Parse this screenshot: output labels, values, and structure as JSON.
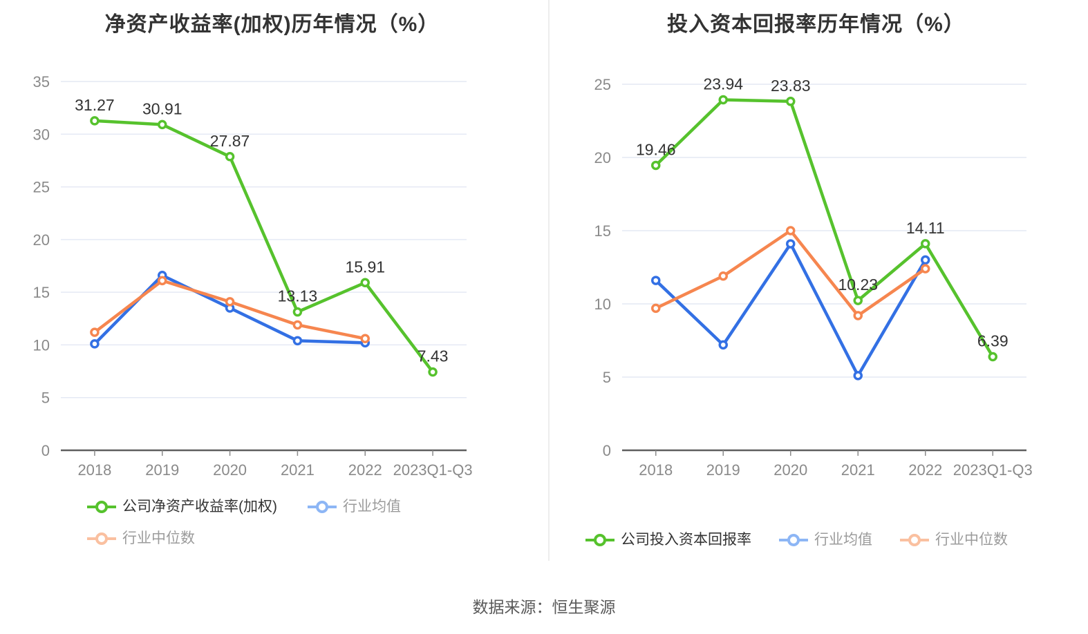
{
  "page": {
    "source_text": "数据来源：恒生聚源",
    "background_color": "#ffffff",
    "divider_color": "#ededed"
  },
  "colors": {
    "grid": "#e4e9f4",
    "axis_line": "#5e5e5e",
    "tick_text": "#8a8a8a",
    "value_label_text": "#333333",
    "legend_active_text": "#333333",
    "legend_muted_text": "#9b9b9b"
  },
  "chart_data": [
    {
      "type": "line",
      "title": "净资产收益率(加权)历年情况（%）",
      "categories": [
        "2018",
        "2019",
        "2020",
        "2021",
        "2022",
        "2023Q1-Q3"
      ],
      "ylim": [
        0,
        35
      ],
      "yticks": [
        0,
        5,
        10,
        15,
        20,
        25,
        30,
        35
      ],
      "grid": true,
      "legend_position": "bottom",
      "series": [
        {
          "name": "公司净资产收益率(加权)",
          "color": "#56c22d",
          "legend_marker_color": "#56c22d",
          "legend_text_color": "#333333",
          "show_labels": true,
          "values": [
            31.27,
            30.91,
            27.87,
            13.13,
            15.91,
            7.43
          ]
        },
        {
          "name": "行业均值",
          "color": "#3370e4",
          "legend_marker_color": "#8db6f5",
          "legend_text_color": "#9b9b9b",
          "show_labels": false,
          "values": [
            10.1,
            16.6,
            13.5,
            10.4,
            10.2,
            null
          ]
        },
        {
          "name": "行业中位数",
          "color": "#f6864f",
          "legend_marker_color": "#fac0a0",
          "legend_text_color": "#9b9b9b",
          "show_labels": false,
          "values": [
            11.2,
            16.1,
            14.1,
            11.9,
            10.6,
            null
          ]
        }
      ]
    },
    {
      "type": "line",
      "title": "投入资本回报率历年情况（%）",
      "categories": [
        "2018",
        "2019",
        "2020",
        "2021",
        "2022",
        "2023Q1-Q3"
      ],
      "ylim": [
        0,
        25
      ],
      "yticks": [
        0,
        5,
        10,
        15,
        20,
        25
      ],
      "grid": true,
      "legend_position": "bottom",
      "series": [
        {
          "name": "公司投入资本回报率",
          "color": "#56c22d",
          "legend_marker_color": "#56c22d",
          "legend_text_color": "#333333",
          "show_labels": true,
          "values": [
            19.46,
            23.94,
            23.83,
            10.23,
            14.11,
            6.39
          ]
        },
        {
          "name": "行业均值",
          "color": "#3370e4",
          "legend_marker_color": "#8db6f5",
          "legend_text_color": "#9b9b9b",
          "show_labels": false,
          "values": [
            11.6,
            7.2,
            14.1,
            5.1,
            13.0,
            null
          ]
        },
        {
          "name": "行业中位数",
          "color": "#f6864f",
          "legend_marker_color": "#fac0a0",
          "legend_text_color": "#9b9b9b",
          "show_labels": false,
          "values": [
            9.7,
            11.9,
            15.0,
            9.2,
            12.4,
            null
          ]
        }
      ]
    }
  ]
}
